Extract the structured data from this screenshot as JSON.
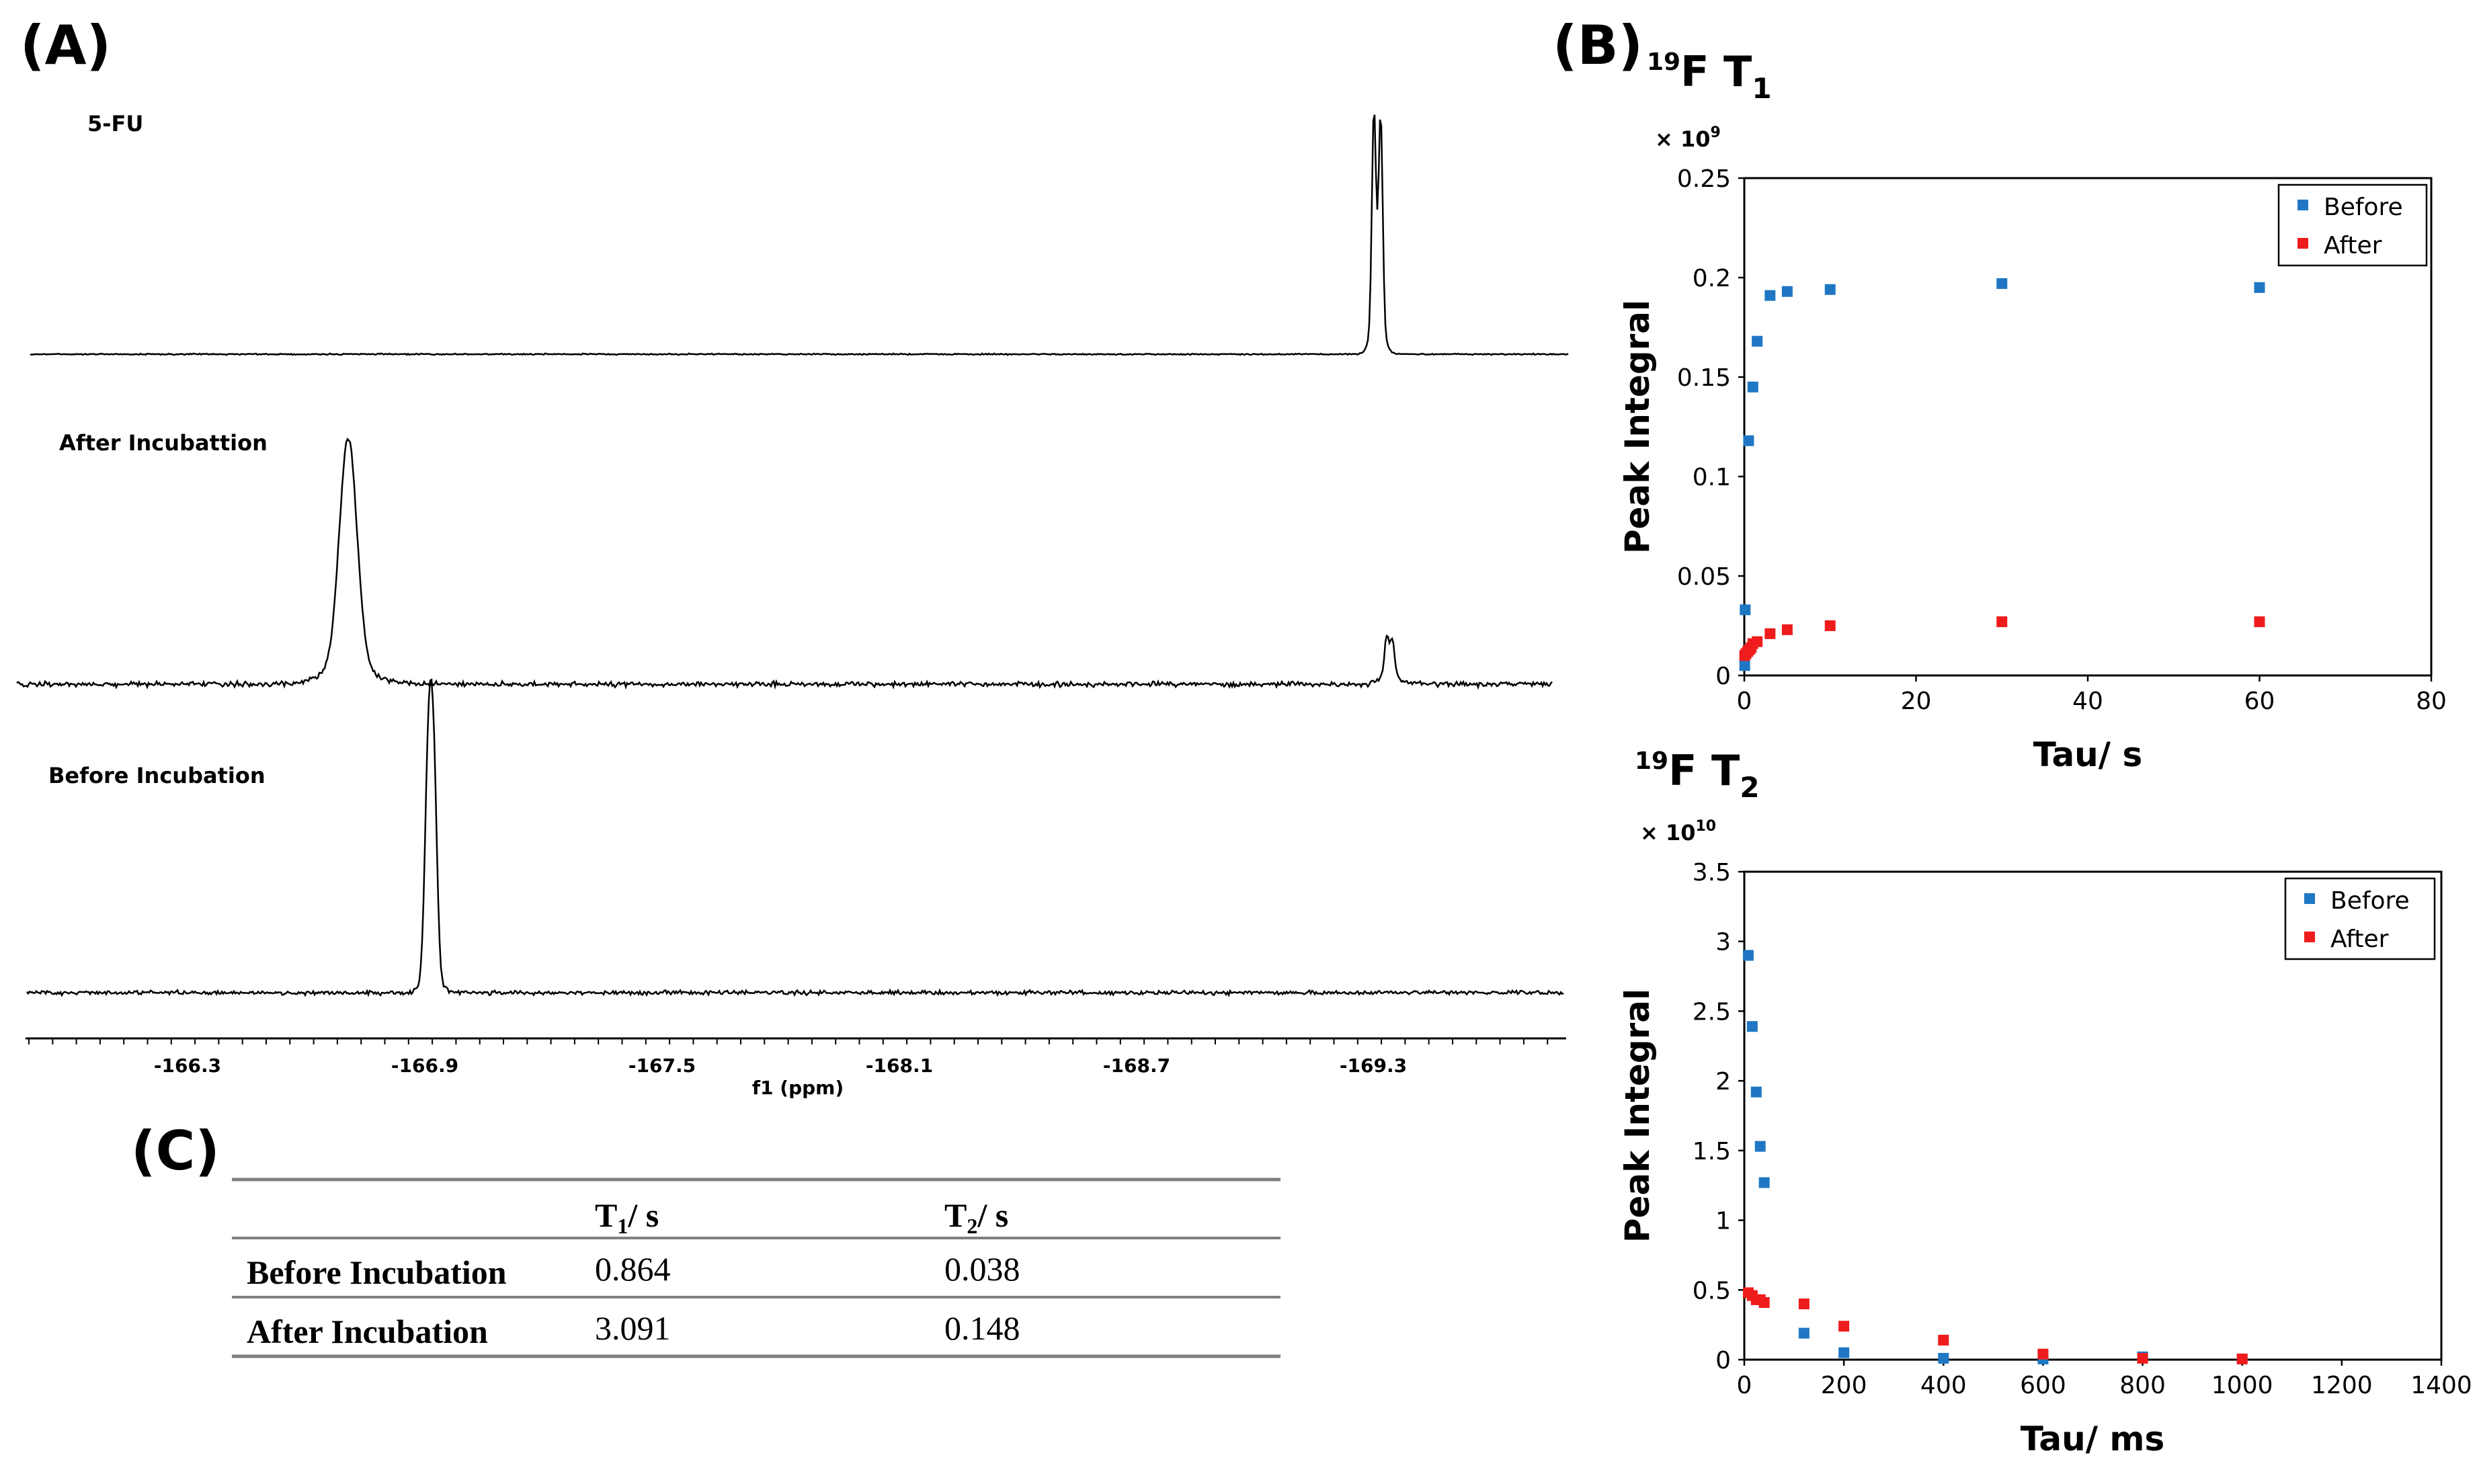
{
  "panels": {
    "a": "(A)",
    "b": "(B)",
    "c": "(C)"
  },
  "spectra": {
    "xlabel": "f1 (ppm)",
    "tick_labels": [
      "-166.3",
      "-166.9",
      "-167.5",
      "-168.1",
      "-168.7",
      "-169.3"
    ],
    "traces": [
      {
        "title": "5-FU"
      },
      {
        "title": "After Incubattion"
      },
      {
        "title": "Before Incubation"
      }
    ]
  },
  "t1_title": {
    "nucleus": "19",
    "main": "F T",
    "sub": "1"
  },
  "t2_title": {
    "nucleus": "19",
    "main": "F T",
    "sub": "2"
  },
  "t1_multiplier": {
    "base": "× 10",
    "exp": "9"
  },
  "t2_multiplier": {
    "base": "× 10",
    "exp": "10"
  },
  "chart_data": [
    {
      "type": "scatter",
      "title": "19F T1",
      "xlabel": "Tau/ s",
      "ylabel": "Peak Integral",
      "xlim": [
        0,
        80
      ],
      "ylim": [
        0,
        0.25
      ],
      "xticks": [
        0,
        20,
        40,
        60,
        80
      ],
      "yticks": [
        0,
        0.05,
        0.1,
        0.15,
        0.2,
        0.25
      ],
      "xtick_labels": [
        "0",
        "20",
        "40",
        "60",
        "80"
      ],
      "ytick_labels": [
        "0",
        "0.05",
        "0.1",
        "0.15",
        "0.2",
        "0.25"
      ],
      "y_multiplier": "× 10^9",
      "legend_position": "top-right",
      "series": [
        {
          "name": "Before",
          "color": "#1f77c4",
          "points": [
            [
              0.05,
              0.005
            ],
            [
              0.1,
              0.033
            ],
            [
              0.5,
              0.118
            ],
            [
              1,
              0.145
            ],
            [
              1.5,
              0.168
            ],
            [
              3,
              0.191
            ],
            [
              5,
              0.193
            ],
            [
              10,
              0.194
            ],
            [
              30,
              0.197
            ],
            [
              60,
              0.195
            ]
          ]
        },
        {
          "name": "After",
          "color": "#ee1c1c",
          "points": [
            [
              0.05,
              0.01
            ],
            [
              0.2,
              0.011
            ],
            [
              0.4,
              0.012
            ],
            [
              0.6,
              0.013
            ],
            [
              0.8,
              0.014
            ],
            [
              1,
              0.016
            ],
            [
              1.5,
              0.017
            ],
            [
              3,
              0.021
            ],
            [
              5,
              0.023
            ],
            [
              10,
              0.025
            ],
            [
              30,
              0.027
            ],
            [
              60,
              0.027
            ]
          ]
        }
      ]
    },
    {
      "type": "scatter",
      "title": "19F T2",
      "xlabel": "Tau/ ms",
      "ylabel": "Peak Integral",
      "xlim": [
        0,
        1400
      ],
      "ylim": [
        0,
        3.5
      ],
      "xticks": [
        0,
        200,
        400,
        600,
        800,
        1000,
        1200,
        1400
      ],
      "yticks": [
        0,
        0.5,
        1,
        1.5,
        2,
        2.5,
        3,
        3.5
      ],
      "xtick_labels": [
        "0",
        "200",
        "400",
        "600",
        "800",
        "1000",
        "1200",
        "1400"
      ],
      "ytick_labels": [
        "0",
        "0.5",
        "1",
        "1.5",
        "2",
        "2.5",
        "3",
        "3.5"
      ],
      "y_multiplier": "× 10^10",
      "legend_position": "top-right",
      "series": [
        {
          "name": "Before",
          "color": "#1f77c4",
          "points": [
            [
              8,
              2.9
            ],
            [
              16,
              2.39
            ],
            [
              24,
              1.92
            ],
            [
              32,
              1.53
            ],
            [
              40,
              1.27
            ],
            [
              120,
              0.19
            ],
            [
              200,
              0.05
            ],
            [
              400,
              0.01
            ],
            [
              600,
              0.005
            ],
            [
              800,
              0.02
            ],
            [
              1000,
              0.005
            ]
          ]
        },
        {
          "name": "After",
          "color": "#ee1c1c",
          "points": [
            [
              8,
              0.48
            ],
            [
              16,
              0.46
            ],
            [
              24,
              0.43
            ],
            [
              32,
              0.43
            ],
            [
              40,
              0.41
            ],
            [
              120,
              0.4
            ],
            [
              200,
              0.24
            ],
            [
              400,
              0.14
            ],
            [
              600,
              0.04
            ],
            [
              800,
              0.01
            ],
            [
              1000,
              0.005
            ]
          ]
        }
      ]
    }
  ],
  "table": {
    "columns": [
      {
        "main": "T",
        "sub": "1",
        "unit": "/ s"
      },
      {
        "main": "T",
        "sub": "2",
        "unit": "/ s"
      }
    ],
    "rows": [
      {
        "label": "Before Incubation",
        "t1": "0.864",
        "t2": "0.038"
      },
      {
        "label": "After Incubation",
        "t1": "3.091",
        "t2": "0.148"
      }
    ]
  }
}
